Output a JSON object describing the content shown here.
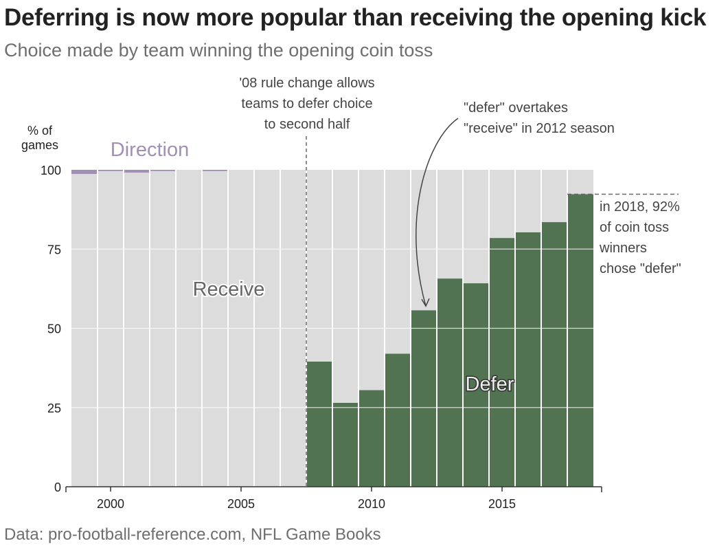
{
  "title": "Deferring is now more popular than receiving the opening kick",
  "subtitle": "Choice made by team winning the opening coin toss",
  "source": "Data: pro-football-reference.com, NFL Game Books",
  "colors": {
    "receive": "#dcdcdc",
    "defer": "#517352",
    "direction": "#a28fb5",
    "grid": "#ffffff",
    "axis": "#333333",
    "annotation": "#444444",
    "dashed": "#666666"
  },
  "chart_data": {
    "type": "bar",
    "stacked": true,
    "ylabel": "% of\ngames",
    "ylim": [
      0,
      100
    ],
    "yticks": [
      0,
      25,
      50,
      75,
      100
    ],
    "xticks": [
      2000,
      2005,
      2010,
      2015
    ],
    "x": [
      1999,
      2000,
      2001,
      2002,
      2003,
      2004,
      2005,
      2006,
      2007,
      2008,
      2009,
      2010,
      2011,
      2012,
      2013,
      2014,
      2015,
      2016,
      2017,
      2018
    ],
    "series": [
      {
        "name": "Defer",
        "color": "#517352",
        "values": [
          0,
          0,
          0,
          0,
          0,
          0,
          0,
          0,
          0,
          39.5,
          26.5,
          30.5,
          42,
          55.7,
          65.7,
          64.2,
          78.5,
          80.3,
          83.5,
          92.3
        ]
      },
      {
        "name": "Receive",
        "color": "#dcdcdc",
        "values": [
          98.7,
          99.6,
          99.1,
          99.6,
          100,
          99.6,
          100,
          100,
          100,
          60.5,
          73.5,
          69.5,
          58,
          44.3,
          34.3,
          35.8,
          21.5,
          19.7,
          16.5,
          7.7
        ]
      },
      {
        "name": "Direction",
        "color": "#a28fb5",
        "values": [
          1.3,
          0.4,
          0.9,
          0.4,
          0,
          0.4,
          0,
          0,
          0,
          0,
          0,
          0,
          0,
          0,
          0,
          0,
          0,
          0,
          0,
          0
        ]
      }
    ],
    "annotations": [
      {
        "id": "rule",
        "text": "'08 rule change allows\nteams to defer choice\nto second half"
      },
      {
        "id": "overtake",
        "text": "\"defer\" overtakes\n\"receive\" in 2012 season"
      },
      {
        "id": "last",
        "text": "in 2018, 92%\nof coin toss\nwinners\nchose \"defer\""
      }
    ]
  }
}
